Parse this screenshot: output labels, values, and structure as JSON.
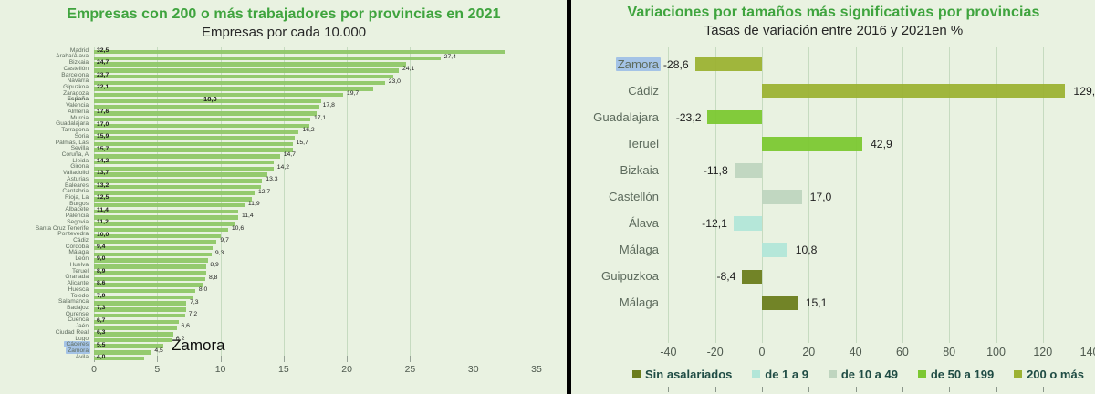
{
  "colors": {
    "background": "#e9f2e1",
    "title_green": "#3fa43e",
    "left_bar_green": "#8fc767",
    "highlight_blue": "#a4c3e6",
    "divider_black": "#000000",
    "gridline": "#c6dbc0"
  },
  "chart_data": [
    {
      "type": "bar",
      "orientation": "horizontal",
      "title": "Empresas con 200 o más trabajadores por provincias en 2021",
      "subtitle": "Empresas por cada 10.000",
      "xlim": [
        0,
        35
      ],
      "x_ticks": [
        0,
        5,
        10,
        15,
        20,
        25,
        30,
        35
      ],
      "grid": true,
      "bar_color": "#8fc767",
      "categories": [
        "Madrid",
        "Araba/Álava",
        "Bizkaia",
        "Castellón",
        "Barcelona",
        "Navarra",
        "Gipuzkoa",
        "Zaragoza",
        "España",
        "Valencia",
        "Almería",
        "Murcia",
        "Guadalajara",
        "Tarragona",
        "Soria",
        "Palmas, Las",
        "Sevilla",
        "Coruña, A",
        "Lleida",
        "Girona",
        "Valladolid",
        "Asturias",
        "Baleares",
        "Cantabria",
        "Rioja, La",
        "Burgos",
        "Albacete",
        "Palencia",
        "Segovia",
        "Santa Cruz Tenerife",
        "Pontevedra",
        "Cádiz",
        "Córdoba",
        "Málaga",
        "León",
        "Huelva",
        "Teruel",
        "Granada",
        "Alicante",
        "Huesca",
        "Toledo",
        "Salamanca",
        "Badajoz",
        "Ourense",
        "Cuenca",
        "Jaén",
        "Ciudad Real",
        "Lugo",
        "Cáceres",
        "Zamora",
        "Ávila"
      ],
      "values": [
        32.5,
        27.4,
        24.7,
        24.1,
        23.7,
        23.0,
        22.1,
        19.7,
        18.0,
        17.8,
        17.6,
        17.1,
        17.0,
        16.2,
        15.9,
        15.7,
        15.7,
        14.7,
        14.2,
        14.2,
        13.7,
        13.3,
        13.2,
        12.7,
        12.5,
        11.9,
        11.4,
        11.4,
        11.2,
        10.6,
        10.0,
        9.7,
        9.4,
        9.3,
        9.0,
        8.9,
        8.9,
        8.8,
        8.6,
        8.0,
        7.9,
        7.3,
        7.3,
        7.2,
        6.7,
        6.6,
        6.3,
        6.2,
        5.5,
        4.5,
        4.0
      ],
      "value_labels": [
        "32,5",
        "27,4",
        "24,7",
        "24,1",
        "23,7",
        "23,0",
        "22,1",
        "19,7",
        "18,0",
        "17,8",
        "17,6",
        "17,1",
        "17,0",
        "16,2",
        "15,9",
        "15,7",
        "15,7",
        "14,7",
        "14,2",
        "14,2",
        "13,7",
        "13,3",
        "13,2",
        "12,7",
        "12,5",
        "11,9",
        "11,4",
        "11,4",
        "11,2",
        "10,6",
        "10,0",
        "9,7",
        "9,4",
        "9,3",
        "9,0",
        "8,9",
        "8,9",
        "8,8",
        "8,6",
        "8,0",
        "7,9",
        "7,3",
        "7,3",
        "7,2",
        "6,7",
        "6,6",
        "6,3",
        "6,2",
        "5,5",
        "4,5",
        "4,0"
      ],
      "bold_category": "España",
      "highlighted_categories": [
        "Cáceres",
        "Zamora"
      ],
      "annotation": "Zamora"
    },
    {
      "type": "bar",
      "orientation": "horizontal",
      "title": "Variaciones por tamaños más significativas por provincias",
      "subtitle": "Tasas de variación entre 2016 y 2021en %",
      "xlim": [
        -40,
        140
      ],
      "x_ticks": [
        -40,
        -20,
        0,
        20,
        40,
        60,
        80,
        100,
        120,
        140
      ],
      "grid": true,
      "categories": [
        "Zamora",
        "Cádiz",
        "Guadalajara",
        "Teruel",
        "Bizkaia",
        "Castellón",
        "Álava",
        "Málaga",
        "Guipuzkoa",
        "Málaga"
      ],
      "values": [
        -28.6,
        129.6,
        -23.2,
        42.9,
        -11.8,
        17.0,
        -12.1,
        10.8,
        -8.4,
        15.1
      ],
      "value_labels": [
        "-28,6",
        "129,6",
        "-23,2",
        "42,9",
        "-11,8",
        "17,0",
        "-12,1",
        "10,8",
        "-8,4",
        "15,1"
      ],
      "series_of": [
        "200 o más",
        "200 o más",
        "de 50 a 199",
        "de 50 a 199",
        "de 10 a 49",
        "de 10 a 49",
        "de 1 a 9",
        "de 1 a 9",
        "Sin asalariados",
        "Sin asalariados"
      ],
      "bar_colors": {
        "Sin asalariados": "#6b7d1c",
        "de 1 a 9": "#b2e6d8",
        "de 10 a 49": "#bfd5bf",
        "de 50 a 199": "#7cc832",
        "200 o más": "#9cb233"
      },
      "highlighted_categories": [
        "Zamora"
      ],
      "legend": [
        {
          "label": "Sin asalariados",
          "color": "#6b7d1c"
        },
        {
          "label": "de 1 a 9",
          "color": "#b2e6d8"
        },
        {
          "label": "de 10 a 49",
          "color": "#bfd5bf"
        },
        {
          "label": "de 50 a 199",
          "color": "#7cc832"
        },
        {
          "label": "200 o más",
          "color": "#9cb233"
        }
      ]
    }
  ]
}
